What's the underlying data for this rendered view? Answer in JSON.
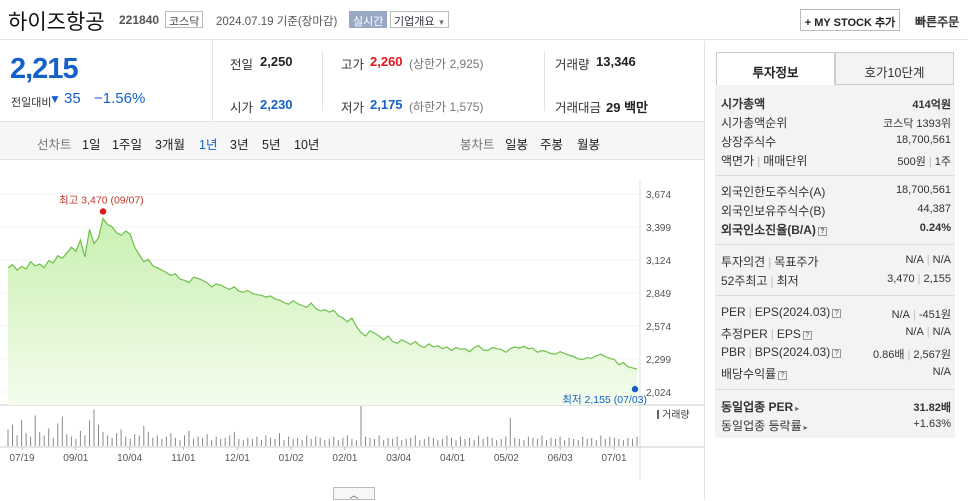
{
  "header": {
    "stock_name": "하이즈항공",
    "stock_code": "221840",
    "market": "코스닥",
    "date_text": "2024.07.19 기준(장마감)",
    "realtime_label": "실시간",
    "company_overview_label": "기업개요",
    "mystock_label": "+ MY STOCK 추가",
    "quick_order_label": "빠른주문"
  },
  "price": {
    "current": "2,215",
    "change_label": "전일대비",
    "change_arrow": "▼",
    "change_amount": "35",
    "change_rate": "−1.56%",
    "stats": {
      "prev_close_label": "전일",
      "prev_close": "2,250",
      "high_label": "고가",
      "high": "2,260",
      "upper_limit": "(상한가 2,925)",
      "volume_label": "거래량",
      "volume": "13,346",
      "open_label": "시가",
      "open": "2,230",
      "low_label": "저가",
      "low": "2,175",
      "lower_limit": "(하한가 1,575)",
      "amount_label": "거래대금",
      "amount": "29 백만"
    }
  },
  "tabs": {
    "line_chart_label": "선차트",
    "line_periods": [
      "1일",
      "1주일",
      "3개월",
      "1년",
      "3년",
      "5년",
      "10년"
    ],
    "selected": "1년",
    "candle_chart_label": "봉차트",
    "candle_periods": [
      "일봉",
      "주봉",
      "월봉"
    ]
  },
  "chart_data": {
    "type": "area",
    "y_ticks": [
      "3,674",
      "3,399",
      "3,124",
      "2,849",
      "2,574",
      "2,299",
      "2,024"
    ],
    "ylim": [
      2024,
      3674
    ],
    "x_ticks": [
      "07/19",
      "09/01",
      "10/04",
      "11/01",
      "12/01",
      "01/02",
      "02/01",
      "03/04",
      "04/01",
      "05/02",
      "06/03",
      "07/01"
    ],
    "high_annotation": "최고 3,470 (09/07)",
    "low_annotation": "최저 2,155 (07/03)",
    "volume_label": "거래량",
    "colors": {
      "line": "#6cc04a",
      "fill_top": "#c9f0b0",
      "fill_bottom": "#f4fcee",
      "high_dot": "#e0171b",
      "low_dot": "#1561c9",
      "volume": "#888888"
    },
    "prices": [
      3060,
      3085,
      3040,
      3070,
      3050,
      3110,
      3075,
      3090,
      3060,
      3120,
      3100,
      3160,
      3140,
      3180,
      3230,
      3195,
      3290,
      3150,
      3380,
      3260,
      3310,
      3470,
      3420,
      3400,
      3350,
      3330,
      3365,
      3340,
      3230,
      3170,
      3110,
      3130,
      3075,
      3060,
      3040,
      3020,
      2995,
      3010,
      2965,
      2955,
      2935,
      2980,
      2970,
      2955,
      2935,
      2900,
      2925,
      2915,
      2895,
      2880,
      2900,
      2865,
      2855,
      2870,
      2845,
      2835,
      2830,
      2815,
      2825,
      2800,
      2790,
      2770,
      2755,
      2785,
      2760,
      2745,
      2730,
      2765,
      2720,
      2700,
      2710,
      2690,
      2705,
      2660,
      2640,
      2610,
      2640,
      2570,
      2520,
      2490,
      2535,
      2515,
      2490,
      2460,
      2490,
      2445,
      2430,
      2460,
      2440,
      2420,
      2445,
      2410,
      2395,
      2425,
      2400,
      2410,
      2385,
      2400,
      2370,
      2395,
      2380,
      2385,
      2360,
      2395,
      2410,
      2375,
      2370,
      2395,
      2385,
      2380,
      2355,
      2385,
      2400,
      2390,
      2405,
      2385,
      2390,
      2355,
      2370,
      2360,
      2345,
      2340,
      2360,
      2345,
      2330,
      2320,
      2300,
      2295,
      2310,
      2305,
      2325,
      2340,
      2320,
      2305,
      2295,
      2250,
      2270,
      2235,
      2225,
      2215
    ],
    "volumes": [
      14,
      18,
      9,
      22,
      11,
      8,
      26,
      12,
      9,
      15,
      7,
      19,
      25,
      10,
      8,
      6,
      13,
      9,
      22,
      31,
      18,
      12,
      9,
      7,
      11,
      14,
      8,
      6,
      10,
      9,
      17,
      12,
      7,
      9,
      6,
      8,
      11,
      7,
      5,
      9,
      13,
      6,
      8,
      7,
      10,
      5,
      8,
      6,
      7,
      9,
      12,
      6,
      5,
      7,
      6,
      8,
      5,
      9,
      7,
      6,
      11,
      5,
      8,
      6,
      7,
      5,
      9,
      6,
      8,
      7,
      5,
      6,
      8,
      5,
      7,
      9,
      6,
      5,
      34,
      8,
      7,
      6,
      9,
      5,
      7,
      6,
      8,
      5,
      6,
      7,
      9,
      5,
      6,
      8,
      7,
      5,
      6,
      9,
      7,
      5,
      8,
      6,
      7,
      5,
      9,
      6,
      8,
      7,
      5,
      6,
      8,
      24,
      7,
      6,
      5,
      8,
      7,
      6,
      9,
      5,
      7,
      6,
      8,
      5,
      7,
      6,
      5,
      8,
      6,
      7,
      5,
      9,
      6,
      8,
      7,
      6,
      5,
      7,
      6,
      8
    ]
  },
  "right_panel": {
    "tab_invest": "투자정보",
    "tab_orderbook": "호가10단계",
    "rows": {
      "market_cap_label": "시가총액",
      "market_cap": "414억원",
      "market_cap_rank_label": "시가총액순위",
      "market_cap_rank": "코스닥 1393위",
      "listed_shares_label": "상장주식수",
      "listed_shares": "18,700,561",
      "face_value_label": "액면가",
      "trade_unit_label": "매매단위",
      "face_value": "500원",
      "trade_unit": "1주",
      "foreign_limit_label": "외국인한도주식수(A)",
      "foreign_limit": "18,700,561",
      "foreign_hold_label": "외국인보유주식수(B)",
      "foreign_hold": "44,387",
      "foreign_ratio_label": "외국인소진율(B/A)",
      "foreign_ratio": "0.24%",
      "opinion_label": "투자의견",
      "target_label": "목표주가",
      "opinion": "N/A",
      "target": "N/A",
      "w52_high_label": "52주최고",
      "w52_low_label": "최저",
      "w52_high": "3,470",
      "w52_low": "2,155",
      "per_label": "PER",
      "eps_label": "EPS(2024.03)",
      "per": "N/A",
      "eps": "-451원",
      "est_per_label": "추정PER",
      "est_eps_label": "EPS",
      "est_per": "N/A",
      "est_eps": "N/A",
      "pbr_label": "PBR",
      "bps_label": "BPS(2024.03)",
      "pbr": "0.86배",
      "bps": "2,567원",
      "dividend_label": "배당수익률",
      "dividend": "N/A",
      "sector_per_label": "동일업종 PER",
      "sector_per": "31.82배",
      "sector_change_label": "동일업종 등락률",
      "sector_change": "+1.63%"
    }
  },
  "collapse_glyph": "︿"
}
